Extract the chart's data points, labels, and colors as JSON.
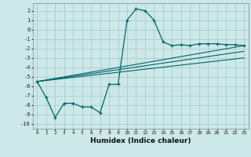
{
  "title": "",
  "xlabel": "Humidex (Indice chaleur)",
  "bg_color": "#cce8e8",
  "grid_color": "#aacccc",
  "line_color": "#006666",
  "xlim": [
    -0.5,
    23.5
  ],
  "ylim": [
    -10.5,
    2.8
  ],
  "yticks": [
    2,
    1,
    0,
    -1,
    -2,
    -3,
    -4,
    -5,
    -6,
    -7,
    -8,
    -9,
    -10
  ],
  "xticks": [
    0,
    1,
    2,
    3,
    4,
    5,
    6,
    7,
    8,
    9,
    10,
    11,
    12,
    13,
    14,
    15,
    16,
    17,
    18,
    19,
    20,
    21,
    22,
    23
  ],
  "main_x": [
    0,
    1,
    2,
    3,
    4,
    5,
    6,
    7,
    8,
    9,
    10,
    11,
    12,
    13,
    14,
    15,
    16,
    17,
    18,
    19,
    20,
    21,
    22,
    23
  ],
  "main_y": [
    -5.5,
    -7.2,
    -9.3,
    -7.8,
    -7.8,
    -8.2,
    -8.2,
    -8.8,
    -5.8,
    -5.8,
    1.0,
    2.2,
    2.0,
    1.0,
    -1.3,
    -1.7,
    -1.6,
    -1.7,
    -1.5,
    -1.5,
    -1.5,
    -1.6,
    -1.6,
    -1.7
  ],
  "line1_x": [
    0,
    23
  ],
  "line1_y": [
    -5.5,
    -1.7
  ],
  "line2_x": [
    0,
    23
  ],
  "line2_y": [
    -5.5,
    -2.3
  ],
  "line3_x": [
    0,
    23
  ],
  "line3_y": [
    -5.5,
    -3.0
  ]
}
